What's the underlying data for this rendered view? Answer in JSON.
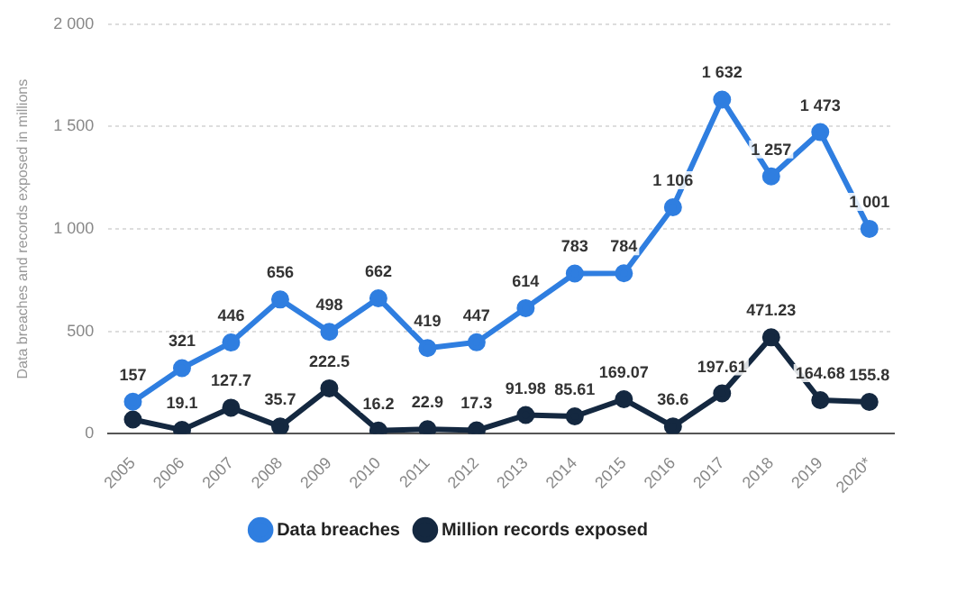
{
  "chart_data": {
    "type": "line",
    "ylabel": "Data breaches and records exposed in millions",
    "categories": [
      "2005",
      "2006",
      "2007",
      "2008",
      "2009",
      "2010",
      "2011",
      "2012",
      "2013",
      "2014",
      "2015",
      "2016",
      "2017",
      "2018",
      "2019",
      "2020*"
    ],
    "series": [
      {
        "name": "Data breaches",
        "color": "#2f7ee0",
        "values": [
          157,
          321,
          446,
          656,
          498,
          662,
          419,
          447,
          614,
          783,
          784,
          1106,
          1632,
          1257,
          1473,
          1001
        ],
        "value_labels": [
          "157",
          "321",
          "446",
          "656",
          "498",
          "662",
          "419",
          "447",
          "614",
          "783",
          "784",
          "1 106",
          "1 632",
          "1 257",
          "1 473",
          "1 001"
        ]
      },
      {
        "name": "Million records exposed",
        "color": "#142840",
        "values": [
          70,
          19.1,
          127.7,
          35.7,
          222.5,
          16.2,
          22.9,
          17.3,
          91.98,
          85.61,
          169.07,
          36.6,
          197.61,
          471.23,
          164.68,
          155.8
        ],
        "value_labels": [
          null,
          "19.1",
          "127.7",
          "35.7",
          "222.5",
          "16.2",
          "22.9",
          "17.3",
          "91.98",
          "85.61",
          "169.07",
          "36.6",
          "197.61",
          "471.23",
          "164.68",
          "155.8"
        ]
      }
    ],
    "ylim": [
      0,
      2000
    ],
    "yticks": [
      0,
      {
        "value": 500,
        "label": "500"
      },
      {
        "value": 1000,
        "label": "1 000"
      },
      {
        "value": 1500,
        "label": "1 500"
      },
      {
        "value": 2000,
        "label": "2 000"
      }
    ],
    "grid": "y",
    "legend": "bottom",
    "marker": "circle",
    "line_style": "solid"
  }
}
